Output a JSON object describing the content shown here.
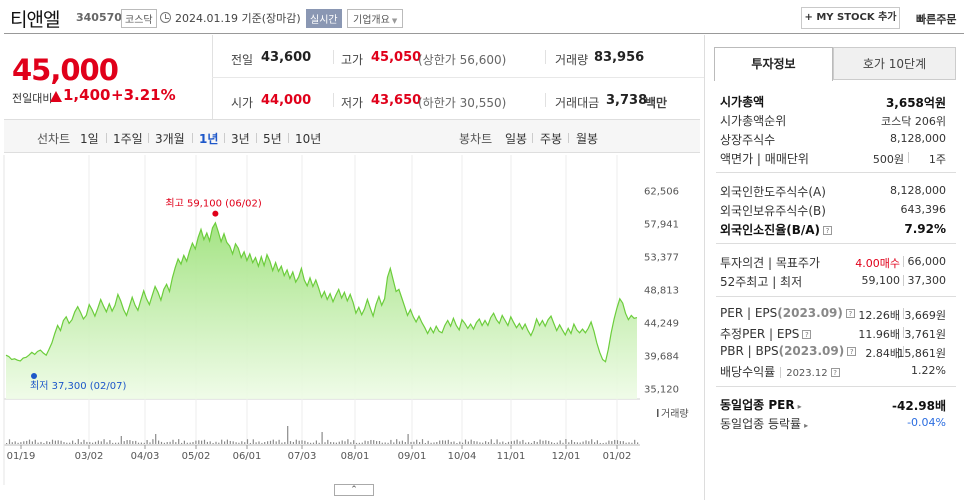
{
  "header": {
    "stock_name": "티앤엘",
    "stock_code": "340570",
    "market": "코스닥",
    "date_text": "2024.01.19  기준(장마감)",
    "realtime": "실시간",
    "company_overview": "기업개요",
    "mystock_button": "+ MY STOCK 추가",
    "quick_order": "빠른주문"
  },
  "price": {
    "current": "45,000",
    "change_label": "전일대비",
    "change_amount": "1,400",
    "change_rate": "+3.21%"
  },
  "stats": {
    "prev_close_label": "전일",
    "prev_close": "43,600",
    "high_label": "고가",
    "high": "45,050",
    "upper_limit": "(상한가 56,600)",
    "volume_label": "거래량",
    "volume": "83,956",
    "open_label": "시가",
    "open": "44,000",
    "low_label": "저가",
    "low": "43,650",
    "lower_limit": "(하한가 30,550)",
    "amount_label": "거래대금",
    "amount": "3,738",
    "amount_unit": "백만"
  },
  "tabs": {
    "line_label": "선차트",
    "periods": [
      "1일",
      "1주일",
      "3개월",
      "1년",
      "3년",
      "5년",
      "10년"
    ],
    "candle_label": "봉차트",
    "candles": [
      "일봉",
      "주봉",
      "월봉"
    ]
  },
  "right_panel": {
    "tab_invest": "투자정보",
    "tab_hoga": "호가 10단계",
    "market_cap_label": "시가총액",
    "market_cap": "3,658억원",
    "cap_rank_label": "시가총액순위",
    "cap_rank": "코스닥 206위",
    "shares_label": "상장주식수",
    "shares": "8,128,000",
    "par_label": "액면가 | 매매단위",
    "par": "500원",
    "unit": "1주",
    "foreign_limit_label": "외국인한도주식수(A)",
    "foreign_limit": "8,128,000",
    "foreign_hold_label": "외국인보유주식수(B)",
    "foreign_hold": "643,396",
    "foreign_rate_label": "외국인소진율(B/A)",
    "foreign_rate": "7.92%",
    "opinion_label": "투자의견 | 목표주가",
    "opinion": "4.00매수",
    "target": "66,000",
    "w52_label": "52주최고 | 최저",
    "w52_high": "59,100",
    "w52_low": "37,300",
    "per_label": "PER | EPS",
    "per_period": "(2023.09)",
    "per": "12.26배",
    "eps": "3,669원",
    "est_per_label": "추정PER | EPS",
    "est_per": "11.96배",
    "est_eps": "3,761원",
    "pbr_label": "PBR | BPS",
    "pbr_period": "(2023.09)",
    "pbr": "2.84배",
    "bps": "15,861원",
    "div_label": "배당수익률",
    "div_period": "2023.12",
    "div": "1.22%",
    "sector_per_label": "동일업종 PER",
    "sector_per": "-42.98배",
    "sector_rate_label": "동일업종 등락률",
    "sector_rate": "-0.04%"
  },
  "chart_data": {
    "type": "area",
    "y_ticks": [
      "62,506",
      "57,941",
      "53,377",
      "48,813",
      "44,249",
      "39,684",
      "35,120"
    ],
    "ylim": [
      35120,
      62506
    ],
    "x_ticks": [
      "01/19",
      "03/02",
      "04/03",
      "05/02",
      "06/01",
      "07/03",
      "08/01",
      "09/01",
      "10/04",
      "11/01",
      "12/01",
      "01/02"
    ],
    "volume_label": "거래량",
    "high_annotation": "최고 59,100 (06/02)",
    "low_annotation": "최저 37,300 (02/07)",
    "high_value": 59100,
    "low_value": 37300,
    "series": [
      {
        "values": [
          39800,
          39600,
          39200,
          39300,
          39100,
          39000,
          39400,
          39500,
          39800,
          40200,
          39900,
          40300,
          40500,
          40100,
          39800,
          40600,
          41500,
          42800,
          43900,
          43200,
          44600,
          45100,
          44200,
          44700,
          45800,
          46500,
          45700,
          44800,
          45300,
          46800,
          46100,
          45200,
          46300,
          47500,
          46600,
          45800,
          46900,
          45900,
          46700,
          48200,
          47300,
          46100,
          45300,
          46500,
          47800,
          46700,
          46000,
          47400,
          48700,
          47600,
          46800,
          48100,
          49300,
          48500,
          47400,
          48900,
          49600,
          48600,
          50500,
          51900,
          53100,
          52400,
          53600,
          52800,
          54200,
          55300,
          54500,
          56100,
          57200,
          55800,
          56700,
          55600,
          57400,
          58100,
          56900,
          55500,
          56600,
          55400,
          54900,
          53800,
          55200,
          54600,
          53300,
          54100,
          52900,
          53800,
          52600,
          53300,
          52100,
          53400,
          52200,
          53700,
          52800,
          51500,
          52600,
          51400,
          52100,
          50800,
          51600,
          50400,
          51300,
          49900,
          50600,
          51800,
          50200,
          49400,
          50500,
          49300,
          50200,
          49100,
          47800,
          48600,
          47500,
          48300,
          47200,
          48100,
          48900,
          47700,
          48500,
          47300,
          48200,
          47100,
          45600,
          46400,
          45400,
          46200,
          47500,
          46300,
          45200,
          46800,
          47900,
          46700,
          47600,
          50600,
          51800,
          50200,
          48600,
          48900,
          47700,
          46500,
          45300,
          46100,
          45100,
          44400,
          45200,
          44300,
          43600,
          42800,
          43600,
          42900,
          43800,
          43100,
          42900,
          43900,
          44600,
          43800,
          44900,
          43900,
          43300,
          44700,
          44200,
          43500,
          44100,
          43400,
          44300,
          44800,
          43900,
          44600,
          43900,
          45000,
          45600,
          44700,
          44200,
          45300,
          44600,
          43900,
          45100,
          44300,
          43600,
          44200,
          43400,
          44100,
          43200,
          42500,
          43400,
          44800,
          43900,
          44600,
          43800,
          44700,
          45200,
          44200,
          43200,
          44000,
          43300,
          42600,
          43500,
          42800,
          44100,
          43300,
          42900,
          43400,
          42900,
          43500,
          44400,
          43100,
          41500,
          40200,
          39200,
          38900,
          40600,
          42900,
          44800,
          46300,
          47600,
          47000,
          45600,
          44700,
          45300,
          44900,
          45000
        ]
      }
    ]
  }
}
